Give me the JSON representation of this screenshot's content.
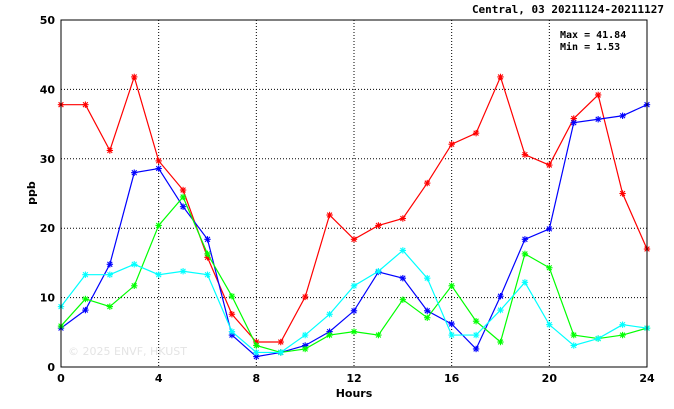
{
  "chart_data": {
    "type": "line",
    "title": "Central, 03 20211124-20211127",
    "xlabel": "Hours",
    "ylabel": "ppb",
    "xlim": [
      0,
      24
    ],
    "ylim": [
      0,
      50
    ],
    "xticks": [
      0,
      4,
      8,
      12,
      16,
      20,
      24
    ],
    "yticks": [
      0,
      10,
      20,
      30,
      40,
      50
    ],
    "grid": "dotted",
    "stats": {
      "max": "Max = 41.84",
      "min": "Min =  1.53"
    },
    "watermark": "© 2025 ENVF, HKUST",
    "x": [
      0,
      1,
      2,
      3,
      4,
      5,
      6,
      7,
      8,
      9,
      10,
      11,
      12,
      13,
      14,
      15,
      16,
      17,
      18,
      19,
      20,
      21,
      22,
      23,
      24
    ],
    "series": [
      {
        "color": "#ff0000",
        "values": [
          37.8,
          37.8,
          31.2,
          41.8,
          29.7,
          25.5,
          15.8,
          7.6,
          3.6,
          3.6,
          10.1,
          21.9,
          18.4,
          20.4,
          21.4,
          26.5,
          32.1,
          33.7,
          41.8,
          30.6,
          29.1,
          35.8,
          39.2,
          25.0,
          17.0
        ]
      },
      {
        "color": "#0000ff",
        "values": [
          5.6,
          8.2,
          14.8,
          28.0,
          28.6,
          23.1,
          18.4,
          4.6,
          1.5,
          2.1,
          3.1,
          5.1,
          8.1,
          13.7,
          12.8,
          8.1,
          6.2,
          2.6,
          10.2,
          18.4,
          19.9,
          35.2,
          35.7,
          36.2,
          37.8
        ]
      },
      {
        "color": "#00ff00",
        "values": [
          5.9,
          9.8,
          8.7,
          11.7,
          20.4,
          24.5,
          16.3,
          10.2,
          3.1,
          2.1,
          2.6,
          4.6,
          5.1,
          4.6,
          9.7,
          7.1,
          11.7,
          6.6,
          3.6,
          16.3,
          14.3,
          4.6,
          4.1,
          4.6,
          5.6
        ]
      },
      {
        "color": "#00ffff",
        "values": [
          8.7,
          13.3,
          13.3,
          14.8,
          13.3,
          13.8,
          13.3,
          5.1,
          2.1,
          2.1,
          4.6,
          7.6,
          11.7,
          13.8,
          16.8,
          12.8,
          4.6,
          4.6,
          8.2,
          12.2,
          6.1,
          3.1,
          4.1,
          6.1,
          5.6
        ]
      }
    ]
  }
}
